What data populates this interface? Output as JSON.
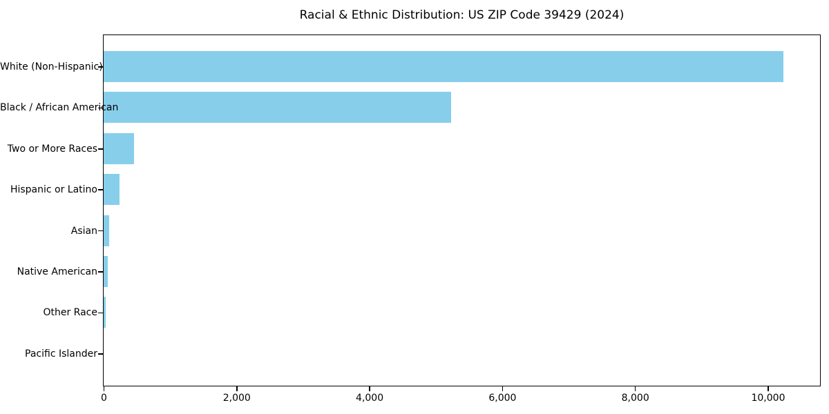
{
  "chart_data": {
    "type": "bar",
    "orientation": "horizontal",
    "title": "Racial & Ethnic Distribution: US ZIP Code 39429 (2024)",
    "categories": [
      "White (Non-Hispanic)",
      "Black / African American",
      "Two or More Races",
      "Hispanic or Latino",
      "Asian",
      "Native American",
      "Other Race",
      "Pacific Islander"
    ],
    "values": [
      10235,
      5227,
      455,
      240,
      85,
      60,
      30,
      0
    ],
    "xlabel": "",
    "ylabel": "",
    "xlim": [
      0,
      10775
    ],
    "xticks": [
      0,
      2000,
      4000,
      6000,
      8000,
      10000
    ],
    "xtick_labels": [
      "0",
      "2,000",
      "4,000",
      "6,000",
      "8,000",
      "10,000"
    ],
    "bar_color": "#87CEEB",
    "axis_color": "#000000",
    "text_color": "#000000",
    "background_color": "#ffffff",
    "grid": false,
    "legend": null
  }
}
